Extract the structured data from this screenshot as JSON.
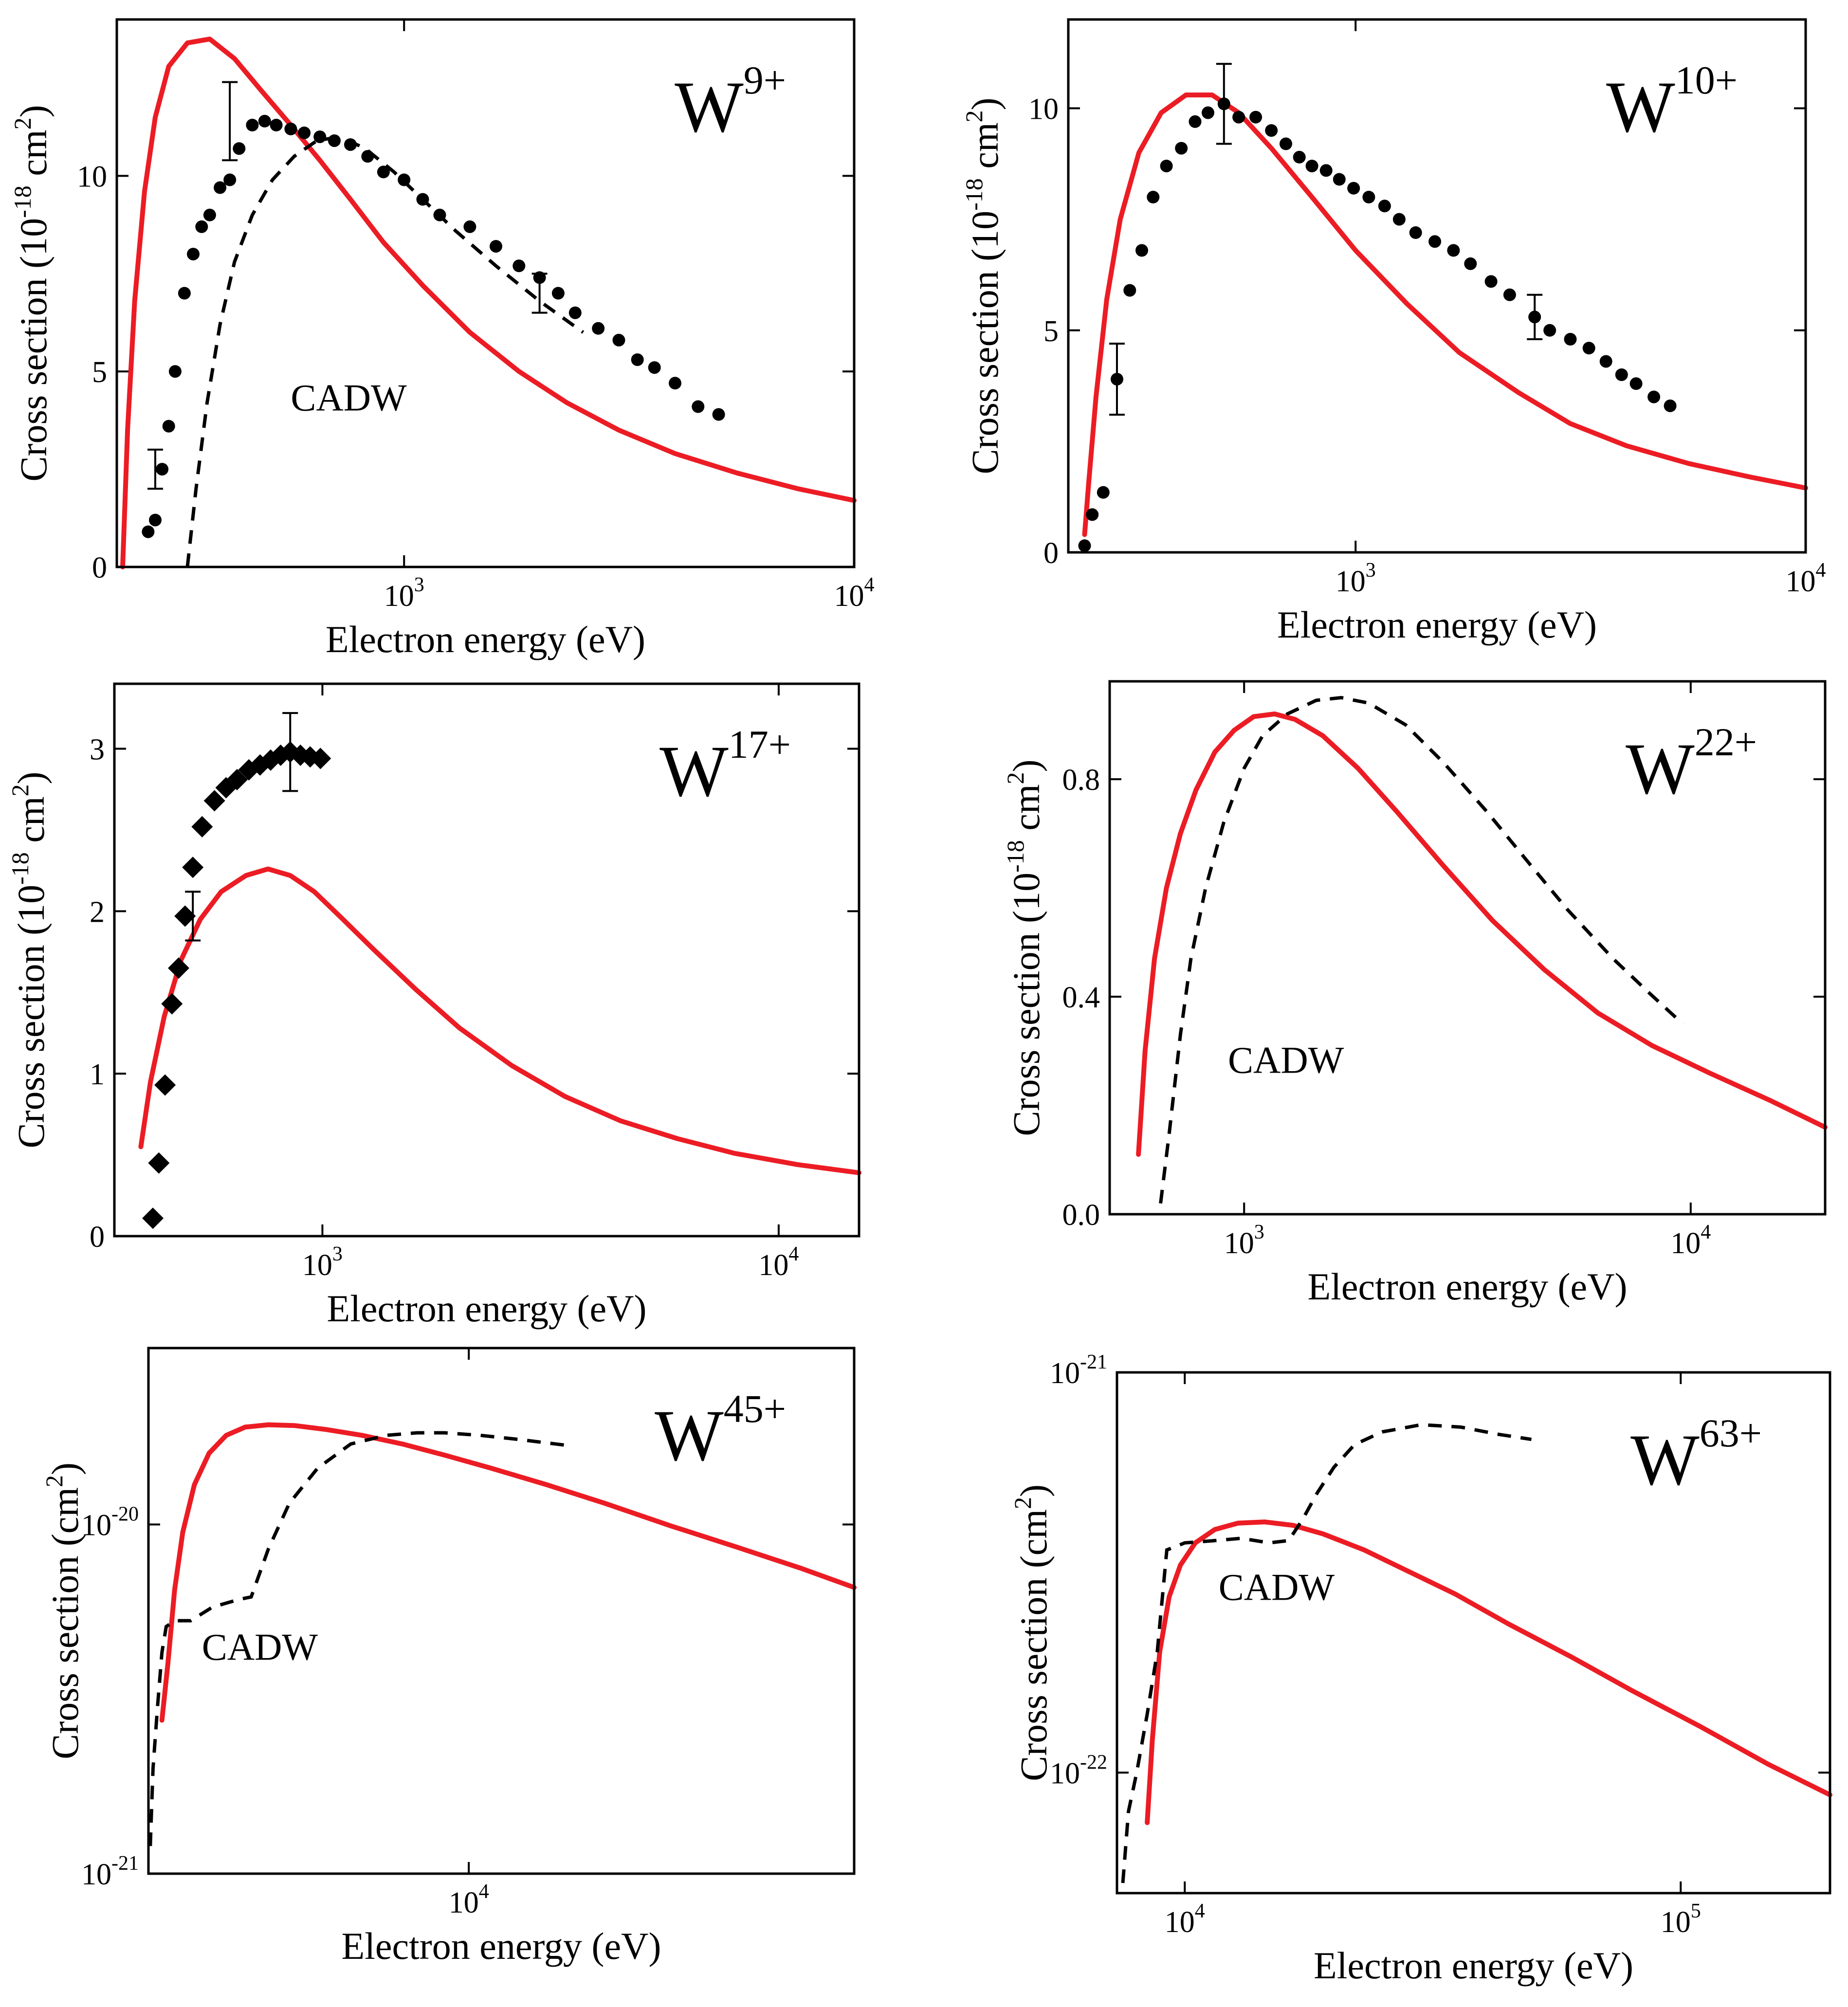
{
  "colors": {
    "theory": "#ec1c24",
    "cadw": "#000000",
    "experiment": "#000000",
    "background": "#ffffff"
  },
  "chart_data": [
    {
      "type": "line",
      "id": "W9",
      "ion": {
        "base": "W",
        "sup": "9+"
      },
      "xscale": "log",
      "yscale": "linear",
      "xlim": [
        230,
        10000
      ],
      "ylim": [
        0,
        14
      ],
      "grid": false,
      "xlabel": "Electron energy (eV)",
      "ylabel": {
        "pre": "Cross section (10",
        "sup": "-18",
        "post": " cm",
        "sup2": "2",
        "end": ")"
      },
      "xticks": [
        {
          "v": 1000,
          "base": "10",
          "exp": "3"
        },
        {
          "v": 10000,
          "base": "10",
          "exp": "4"
        }
      ],
      "yticks": [
        {
          "v": 0,
          "label": "0"
        },
        {
          "v": 5,
          "label": "5"
        },
        {
          "v": 10,
          "label": "10"
        }
      ],
      "annotation": {
        "text": "CADW",
        "x": 560,
        "y": 4.0
      },
      "series": [
        {
          "name": "theory",
          "style": "solid-red",
          "x": [
            237,
            243,
            252,
            265,
            280,
            300,
            330,
            370,
            420,
            480,
            560,
            650,
            760,
            900,
            1100,
            1400,
            1800,
            2300,
            3000,
            4000,
            5500,
            7500,
            10000
          ],
          "y": [
            0,
            3.5,
            6.8,
            9.6,
            11.5,
            12.8,
            13.4,
            13.5,
            13.0,
            12.2,
            11.3,
            10.4,
            9.4,
            8.3,
            7.2,
            6.0,
            5.0,
            4.2,
            3.5,
            2.9,
            2.4,
            2.0,
            1.7
          ]
        },
        {
          "name": "CADW",
          "style": "dashed-black",
          "x": [
            330,
            345,
            365,
            390,
            420,
            460,
            510,
            570,
            640,
            720,
            820,
            950,
            1100,
            1300,
            1600,
            2000,
            2500
          ],
          "y": [
            0,
            2.0,
            4.2,
            6.2,
            7.8,
            9.0,
            9.9,
            10.5,
            10.9,
            11.0,
            10.7,
            10.1,
            9.4,
            8.6,
            7.7,
            6.8,
            6.0
          ]
        },
        {
          "name": "experiment",
          "style": "dots",
          "x": [
            270,
            280,
            290,
            300,
            310,
            325,
            340,
            355,
            370,
            390,
            410,
            430,
            460,
            490,
            520,
            560,
            600,
            650,
            700,
            760,
            830,
            900,
            1000,
            1100,
            1200,
            1400,
            1600,
            1800,
            2000,
            2200,
            2400,
            2700,
            3000,
            3300,
            3600,
            4000,
            4500,
            5000
          ],
          "y": [
            0.9,
            1.2,
            2.5,
            3.6,
            5.0,
            7.0,
            8.0,
            8.7,
            9.0,
            9.7,
            9.9,
            10.7,
            11.3,
            11.4,
            11.3,
            11.2,
            11.1,
            11.0,
            10.9,
            10.8,
            10.5,
            10.1,
            9.9,
            9.4,
            9.0,
            8.7,
            8.2,
            7.7,
            7.4,
            7.0,
            6.5,
            6.1,
            5.8,
            5.3,
            5.1,
            4.7,
            4.1,
            3.9
          ]
        }
      ],
      "errorbars": [
        {
          "x": 280,
          "y": 2.5,
          "err": 0.5
        },
        {
          "x": 410,
          "y": 11.4,
          "err": 1.0
        },
        {
          "x": 2000,
          "y": 7.0,
          "err": 0.5
        }
      ]
    },
    {
      "type": "line",
      "id": "W10",
      "ion": {
        "base": "W",
        "sup": "10+"
      },
      "xscale": "log",
      "yscale": "linear",
      "xlim": [
        230,
        10000
      ],
      "ylim": [
        0,
        12
      ],
      "grid": false,
      "xlabel": "Electron energy (eV)",
      "ylabel": {
        "pre": "Cross section (10",
        "sup": "-18",
        "post": " cm",
        "sup2": "2",
        "end": ")"
      },
      "xticks": [
        {
          "v": 1000,
          "base": "10",
          "exp": "3"
        },
        {
          "v": 10000,
          "base": "10",
          "exp": "4"
        }
      ],
      "yticks": [
        {
          "v": 0,
          "label": "0"
        },
        {
          "v": 5,
          "label": "5"
        },
        {
          "v": 10,
          "label": "10"
        }
      ],
      "series": [
        {
          "name": "theory",
          "style": "solid-red",
          "x": [
            250,
            255,
            265,
            280,
            300,
            330,
            370,
            420,
            480,
            550,
            650,
            800,
            1000,
            1300,
            1700,
            2300,
            3000,
            4000,
            5500,
            7500,
            10000
          ],
          "y": [
            0.4,
            1.5,
            3.5,
            5.7,
            7.5,
            9.0,
            9.9,
            10.3,
            10.3,
            9.9,
            9.1,
            8.0,
            6.8,
            5.6,
            4.5,
            3.6,
            2.9,
            2.4,
            2.0,
            1.7,
            1.45
          ]
        },
        {
          "name": "experiment",
          "style": "dots",
          "x": [
            250,
            260,
            275,
            295,
            315,
            335,
            355,
            380,
            410,
            440,
            470,
            510,
            550,
            600,
            650,
            700,
            750,
            800,
            860,
            920,
            990,
            1070,
            1160,
            1250,
            1360,
            1500,
            1650,
            1800,
            2000,
            2200,
            2500,
            2700,
            3000,
            3300,
            3600,
            3900,
            4200,
            4600,
            5000
          ],
          "y": [
            0.15,
            0.85,
            1.35,
            3.9,
            5.9,
            6.8,
            8.0,
            8.7,
            9.1,
            9.7,
            9.9,
            10.1,
            9.8,
            9.8,
            9.5,
            9.2,
            8.9,
            8.7,
            8.6,
            8.4,
            8.2,
            8.0,
            7.8,
            7.5,
            7.2,
            7.0,
            6.8,
            6.5,
            6.1,
            5.8,
            5.3,
            5.0,
            4.8,
            4.6,
            4.3,
            4.0,
            3.8,
            3.5,
            3.3
          ]
        }
      ],
      "errorbars": [
        {
          "x": 295,
          "y": 3.9,
          "err": 0.8
        },
        {
          "x": 510,
          "y": 10.1,
          "err": 0.9
        },
        {
          "x": 2500,
          "y": 5.3,
          "err": 0.5
        }
      ]
    },
    {
      "type": "line",
      "id": "W17",
      "ion": {
        "base": "W",
        "sup": "17+"
      },
      "xscale": "log",
      "yscale": "linear",
      "xlim": [
        350,
        15000
      ],
      "ylim": [
        0,
        3.4
      ],
      "grid": false,
      "xlabel": "Electron energy (eV)",
      "ylabel": {
        "pre": "Cross section (10",
        "sup": "-18",
        "post": " cm",
        "sup2": "2",
        "end": ")"
      },
      "xticks": [
        {
          "v": 1000,
          "base": "10",
          "exp": "3"
        },
        {
          "v": 10000,
          "base": "10",
          "exp": "4"
        }
      ],
      "yticks": [
        {
          "v": 0,
          "label": "0"
        },
        {
          "v": 1,
          "label": "1"
        },
        {
          "v": 2,
          "label": "2"
        },
        {
          "v": 3,
          "label": "3"
        }
      ],
      "series": [
        {
          "name": "theory",
          "style": "solid-red",
          "x": [
            400,
            420,
            450,
            490,
            540,
            600,
            680,
            760,
            850,
            960,
            1100,
            1300,
            1600,
            2000,
            2600,
            3400,
            4500,
            6000,
            8000,
            11000,
            15000
          ],
          "y": [
            0.55,
            0.95,
            1.35,
            1.7,
            1.95,
            2.12,
            2.22,
            2.26,
            2.22,
            2.12,
            1.96,
            1.76,
            1.52,
            1.28,
            1.05,
            0.86,
            0.71,
            0.6,
            0.51,
            0.44,
            0.39
          ]
        },
        {
          "name": "experiment",
          "style": "diamonds",
          "x": [
            425,
            438,
            452,
            468,
            484,
            500,
            520,
            545,
            580,
            615,
            650,
            690,
            730,
            770,
            810,
            850,
            895,
            940,
            990
          ],
          "y": [
            0.11,
            0.45,
            0.93,
            1.43,
            1.65,
            1.97,
            2.27,
            2.52,
            2.68,
            2.76,
            2.81,
            2.87,
            2.9,
            2.93,
            2.96,
            2.98,
            2.96,
            2.95,
            2.94
          ]
        }
      ],
      "errorbars": [
        {
          "x": 520,
          "y": 1.97,
          "err": 0.15
        },
        {
          "x": 850,
          "y": 2.98,
          "err": 0.24
        }
      ]
    },
    {
      "type": "line",
      "id": "W22",
      "ion": {
        "base": "W",
        "sup": "22+"
      },
      "xscale": "log",
      "yscale": "linear",
      "xlim": [
        500,
        20000
      ],
      "ylim": [
        0,
        0.98
      ],
      "grid": false,
      "xlabel": "Electron energy (eV)",
      "ylabel": {
        "pre": "Cross section (10",
        "sup": "-18",
        "post": " cm",
        "sup2": "2",
        "end": ")"
      },
      "xticks": [
        {
          "v": 1000,
          "base": "10",
          "exp": "3"
        },
        {
          "v": 10000,
          "base": "10",
          "exp": "4"
        }
      ],
      "yticks": [
        {
          "v": 0,
          "label": "0.0"
        },
        {
          "v": 0.4,
          "label": "0.4"
        },
        {
          "v": 0.8,
          "label": "0.8"
        }
      ],
      "annotation": {
        "text": "CADW",
        "x": 920,
        "y": 0.26
      },
      "series": [
        {
          "name": "theory",
          "style": "solid-red",
          "x": [
            580,
            600,
            630,
            670,
            720,
            780,
            860,
            950,
            1050,
            1170,
            1300,
            1500,
            1800,
            2200,
            2800,
            3600,
            4700,
            6200,
            8200,
            11000,
            15000,
            20000
          ],
          "y": [
            0.11,
            0.3,
            0.47,
            0.6,
            0.7,
            0.78,
            0.85,
            0.89,
            0.915,
            0.92,
            0.91,
            0.88,
            0.82,
            0.74,
            0.64,
            0.54,
            0.45,
            0.37,
            0.31,
            0.26,
            0.21,
            0.16
          ]
        },
        {
          "name": "CADW",
          "style": "dashed-black",
          "x": [
            650,
            680,
            720,
            760,
            820,
            900,
            1000,
            1100,
            1250,
            1450,
            1650,
            1900,
            2300,
            2800,
            3500,
            4300,
            5300,
            6700,
            8000,
            9600
          ],
          "y": [
            0.02,
            0.15,
            0.33,
            0.47,
            0.6,
            0.72,
            0.82,
            0.88,
            0.92,
            0.945,
            0.95,
            0.94,
            0.9,
            0.83,
            0.74,
            0.65,
            0.56,
            0.47,
            0.41,
            0.35
          ]
        }
      ]
    },
    {
      "type": "line",
      "id": "W45",
      "ion": {
        "base": "W",
        "sup": "45+"
      },
      "xscale": "log",
      "yscale": "log",
      "xlim": [
        2500,
        53000
      ],
      "ylim": [
        1e-21,
        3.2e-20
      ],
      "grid": false,
      "xlabel": "Electron energy (eV)",
      "ylabel": {
        "pre": "Cross section (cm",
        "sup": "2",
        "post": ")"
      },
      "xticks": [
        {
          "v": 10000,
          "base": "10",
          "exp": "4"
        }
      ],
      "yticks": [
        {
          "v": 1e-21,
          "base": "10",
          "exp": "-21"
        },
        {
          "v": 1e-20,
          "base": "10",
          "exp": "-20"
        }
      ],
      "annotation": {
        "text": "CADW",
        "x": 3150,
        "y": 4.1e-21
      },
      "series": [
        {
          "name": "theory",
          "style": "solid-red",
          "x": [
            2650,
            2720,
            2800,
            2900,
            3050,
            3250,
            3500,
            3800,
            4200,
            4700,
            5400,
            6300,
            7500,
            9000,
            11000,
            14000,
            18000,
            24000,
            32000,
            42000,
            53000
          ],
          "y": [
            2.75e-21,
            4e-21,
            6.5e-21,
            9.5e-21,
            1.3e-20,
            1.6e-20,
            1.8e-20,
            1.9e-20,
            1.93e-20,
            1.92e-20,
            1.87e-20,
            1.8e-20,
            1.7e-20,
            1.58e-20,
            1.45e-20,
            1.3e-20,
            1.15e-20,
            9.9e-21,
            8.6e-21,
            7.5e-21,
            6.6e-21
          ]
        },
        {
          "name": "CADW",
          "style": "dashed-black",
          "x": [
            2520,
            2550,
            2600,
            2650,
            2700,
            2800,
            3000,
            3300,
            3700,
            3900,
            4200,
            4600,
            5200,
            6000,
            7000,
            8000,
            9000,
            10500,
            12500,
            15500
          ],
          "y": [
            1.2e-21,
            2e-21,
            3e-21,
            4.3e-21,
            5.1e-21,
            5.3e-21,
            5.3e-21,
            5.8e-21,
            6.1e-21,
            6.2e-21,
            8.5e-21,
            1.15e-20,
            1.45e-20,
            1.7e-20,
            1.8e-20,
            1.83e-20,
            1.83e-20,
            1.8e-20,
            1.75e-20,
            1.68e-20
          ]
        }
      ]
    },
    {
      "type": "line",
      "id": "W63",
      "ion": {
        "base": "W",
        "sup": "63+"
      },
      "xscale": "log",
      "yscale": "log",
      "xlim": [
        7300,
        200000
      ],
      "ylim": [
        5e-23,
        1e-21
      ],
      "grid": false,
      "xlabel": "Electron energy (eV)",
      "ylabel": {
        "pre": "Cross section (cm",
        "sup": "2",
        "post": ")"
      },
      "xticks": [
        {
          "v": 10000,
          "base": "10",
          "exp": "4"
        },
        {
          "v": 100000,
          "base": "10",
          "exp": "5"
        }
      ],
      "yticks": [
        {
          "v": 1e-22,
          "base": "10",
          "exp": "-22"
        },
        {
          "v": 1e-21,
          "base": "10",
          "exp": "-21"
        }
      ],
      "annotation": {
        "text": "CADW",
        "x": 11700,
        "y": 2.7e-22
      },
      "series": [
        {
          "name": "theory",
          "style": "solid-red",
          "x": [
            8400,
            8600,
            8900,
            9300,
            9800,
            10500,
            11500,
            12800,
            14500,
            16500,
            19000,
            23000,
            28000,
            35000,
            45000,
            60000,
            80000,
            110000,
            150000,
            200000
          ],
          "y": [
            7.5e-23,
            1.2e-22,
            2e-22,
            2.75e-22,
            3.3e-22,
            3.75e-22,
            4.05e-22,
            4.2e-22,
            4.23e-22,
            4.15e-22,
            3.95e-22,
            3.6e-22,
            3.2e-22,
            2.8e-22,
            2.35e-22,
            1.95e-22,
            1.6e-22,
            1.3e-22,
            1.05e-22,
            8.8e-23
          ]
        },
        {
          "name": "CADW",
          "style": "dashed-black",
          "x": [
            7500,
            7700,
            8000,
            8400,
            8800,
            9200,
            10000,
            11500,
            13000,
            14800,
            16200,
            17300,
            18500,
            20000,
            22000,
            25000,
            30000,
            36000,
            43000,
            50000
          ],
          "y": [
            5.3e-23,
            8e-23,
            1e-22,
            1.4e-22,
            2e-22,
            3.6e-22,
            3.75e-22,
            3.8e-22,
            3.85e-22,
            3.75e-22,
            3.8e-22,
            4.3e-22,
            5e-22,
            5.8e-22,
            6.6e-22,
            7.1e-22,
            7.4e-22,
            7.3e-22,
            7e-22,
            6.8e-22
          ]
        }
      ]
    }
  ]
}
